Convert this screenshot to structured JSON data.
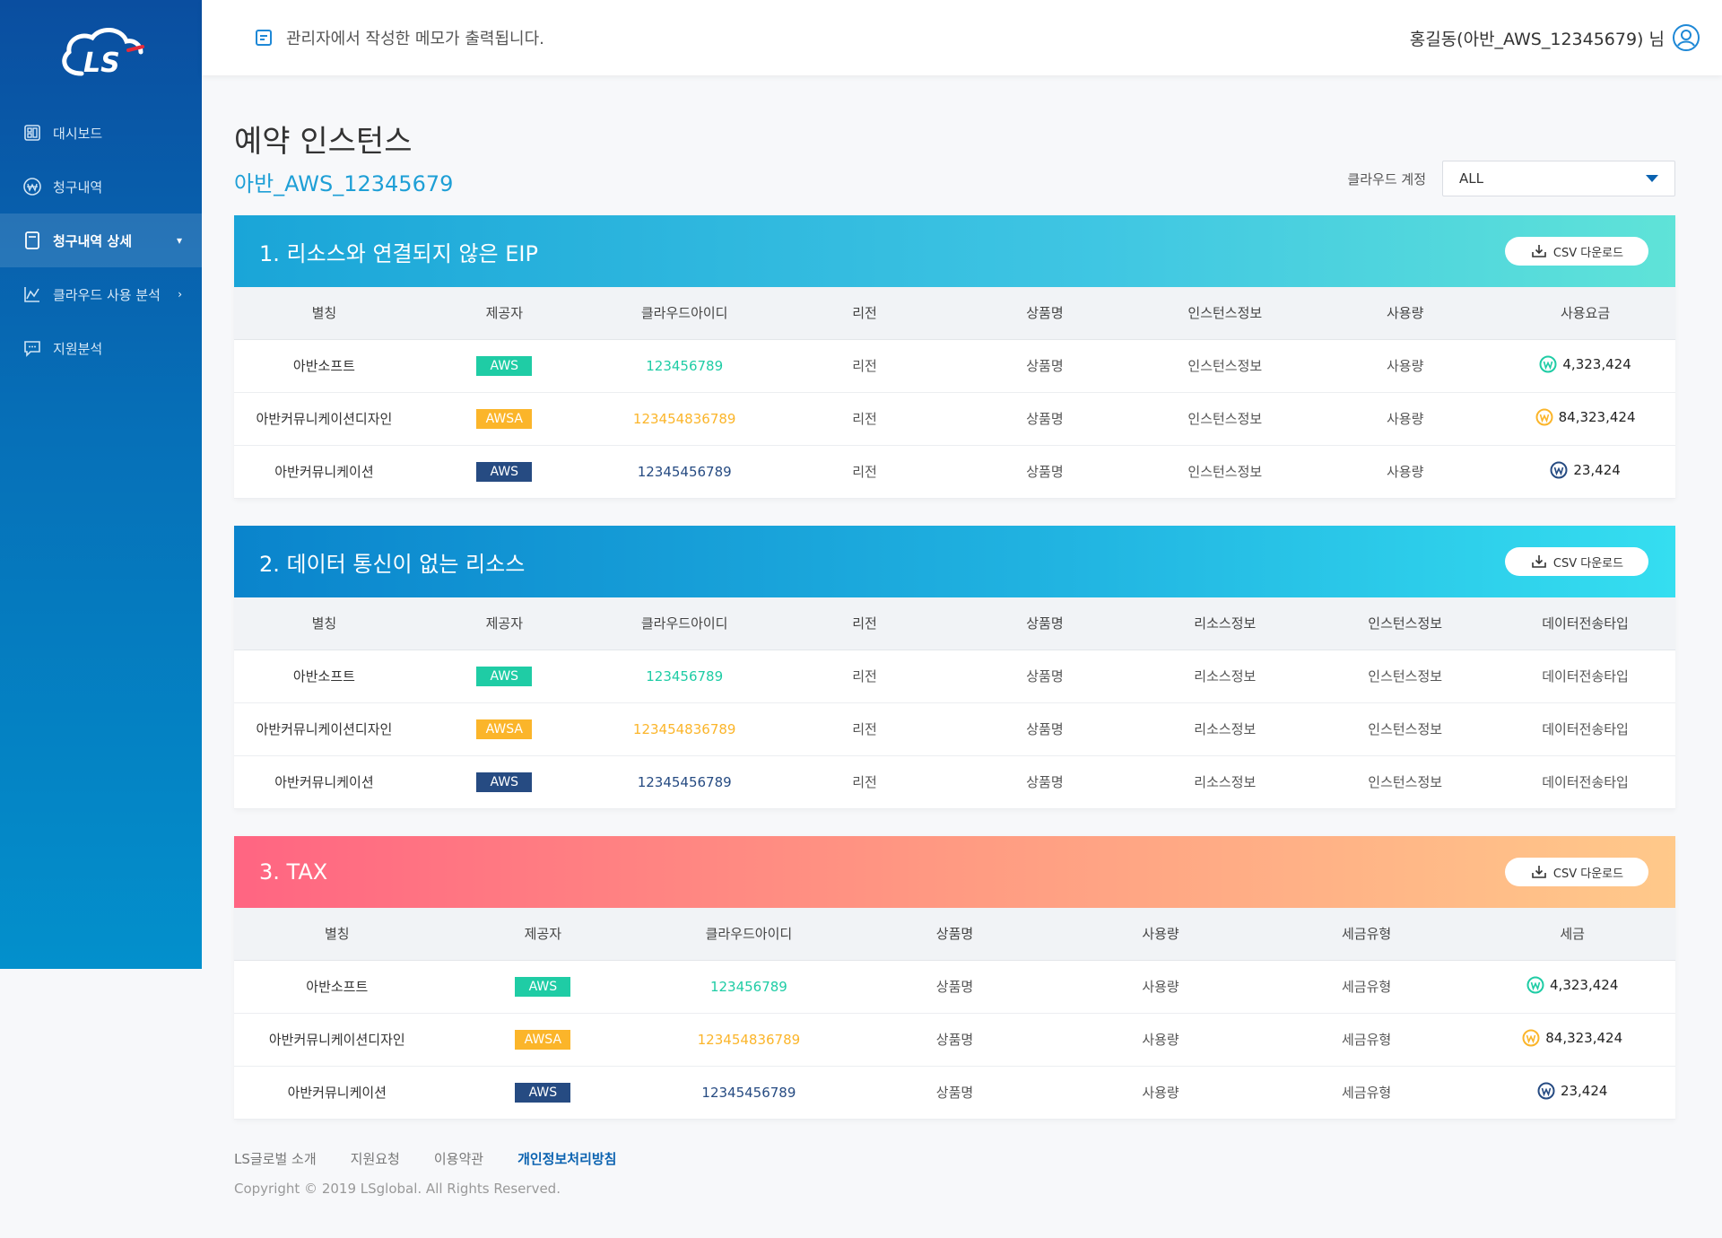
{
  "brand": {
    "logo_text": "LS"
  },
  "sidebar": {
    "items": [
      {
        "label": "대시보드",
        "icon": "dashboard-icon"
      },
      {
        "label": "청구내역",
        "icon": "won-circle-icon"
      },
      {
        "label": "청구내역 상세",
        "icon": "document-icon",
        "active": true,
        "chevron": "▾"
      },
      {
        "label": "클라우드 사용 분석",
        "icon": "chart-line-icon",
        "chevron": "›"
      },
      {
        "label": "지원분석",
        "icon": "chat-icon"
      }
    ]
  },
  "header": {
    "memo": "관리자에서 작성한 메모가 출력됩니다.",
    "user": "홍길동(아반_AWS_12345679) 님"
  },
  "page": {
    "title": "예약 인스턴스",
    "subtitle": "아반_AWS_12345679",
    "filter_label": "클라우드 계정",
    "filter_value": "ALL"
  },
  "csv_label": "CSV 다운로드",
  "colors": {
    "aws": "#1fcca5",
    "awsa": "#fbb52a",
    "dark": "#264b82",
    "accent": "#0a62b0"
  },
  "sections": [
    {
      "title": "1. 리소스와 연결되지 않은 EIP",
      "columns": [
        "별칭",
        "제공자",
        "클라우드아이디",
        "리전",
        "상품명",
        "인스턴스정보",
        "사용량",
        "사용요금"
      ],
      "rows": [
        [
          "아반소프트",
          "AWS",
          "123456789",
          "리전",
          "상품명",
          "인스턴스정보",
          "사용량",
          "4,323,424"
        ],
        [
          "아반커뮤니케이션디자인",
          "AWSA",
          "123454836789",
          "리전",
          "상품명",
          "인스턴스정보",
          "사용량",
          "84,323,424"
        ],
        [
          "아반커뮤니케이션",
          "AWS",
          "12345456789",
          "리전",
          "상품명",
          "인스턴스정보",
          "사용량",
          "23,424"
        ]
      ]
    },
    {
      "title": "2. 데이터 통신이 없는 리소스",
      "columns": [
        "별칭",
        "제공자",
        "클라우드아이디",
        "리전",
        "상품명",
        "리소스정보",
        "인스턴스정보",
        "데이터전송타입"
      ],
      "rows": [
        [
          "아반소프트",
          "AWS",
          "123456789",
          "리전",
          "상품명",
          "리소스정보",
          "인스턴스정보",
          "데이터전송타입"
        ],
        [
          "아반커뮤니케이션디자인",
          "AWSA",
          "123454836789",
          "리전",
          "상품명",
          "리소스정보",
          "인스턴스정보",
          "데이터전송타입"
        ],
        [
          "아반커뮤니케이션",
          "AWS",
          "12345456789",
          "리전",
          "상품명",
          "리소스정보",
          "인스턴스정보",
          "데이터전송타입"
        ]
      ]
    },
    {
      "title": "3. TAX",
      "columns": [
        "별칭",
        "제공자",
        "클라우드아이디",
        "상품명",
        "사용량",
        "세금유형",
        "세금"
      ],
      "rows": [
        [
          "아반소프트",
          "AWS",
          "123456789",
          "상품명",
          "사용량",
          "세금유형",
          "4,323,424"
        ],
        [
          "아반커뮤니케이션디자인",
          "AWSA",
          "123454836789",
          "상품명",
          "사용량",
          "세금유형",
          "84,323,424"
        ],
        [
          "아반커뮤니케이션",
          "AWS",
          "12345456789",
          "상품명",
          "사용량",
          "세금유형",
          "23,424"
        ]
      ]
    }
  ],
  "footer": {
    "links": [
      "LS글로벌 소개",
      "지원요청",
      "이용약관",
      "개인정보처리방침"
    ],
    "copyright": "Copyright © 2019 LSglobal. All Rights Reserved."
  }
}
